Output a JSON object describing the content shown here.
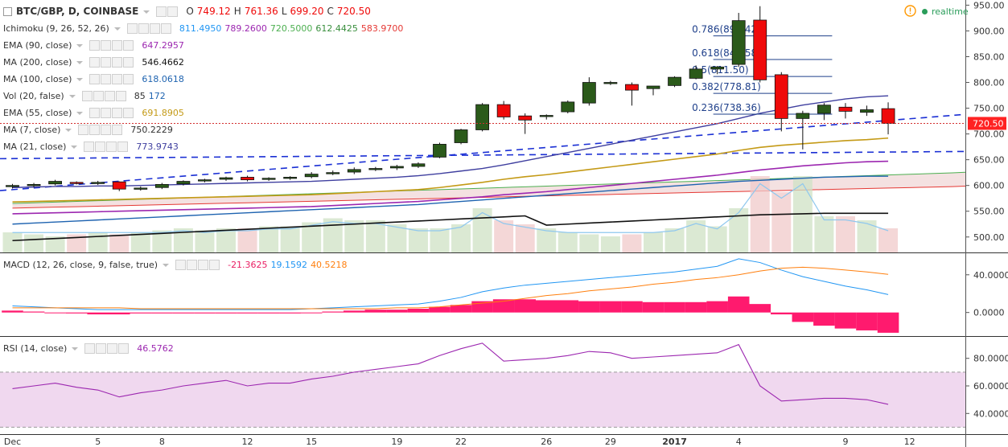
{
  "header": {
    "symbol": "BTC/GBP, D, COINBASE",
    "ohlc": [
      {
        "key": "O",
        "value": "749.12"
      },
      {
        "key": "H",
        "value": "761.36"
      },
      {
        "key": "L",
        "value": "699.20"
      },
      {
        "key": "C",
        "value": "720.50"
      }
    ],
    "realtime_label": "realtime",
    "warning_icon": "warning-circle-icon"
  },
  "indicators": [
    {
      "name": "Ichimoku (9, 26, 52, 26)",
      "values": [
        {
          "v": "811.4950",
          "c": "#2196f3"
        },
        {
          "v": "789.2600",
          "c": "#9c27b0"
        },
        {
          "v": "720.5000",
          "c": "#4caf50"
        },
        {
          "v": "612.4425",
          "c": "#388e3c"
        },
        {
          "v": "583.9700",
          "c": "#e53935"
        }
      ]
    },
    {
      "name": "EMA (90, close)",
      "values": [
        {
          "v": "647.2957",
          "c": "#9c27b0"
        }
      ]
    },
    {
      "name": "MA (200, close)",
      "values": [
        {
          "v": "546.4662",
          "c": "#111111"
        }
      ]
    },
    {
      "name": "MA (100, close)",
      "values": [
        {
          "v": "618.0618",
          "c": "#1e63b0"
        }
      ]
    },
    {
      "name": "Vol (20, false)",
      "values": [
        {
          "v": "85",
          "c": "#333333"
        },
        {
          "v": "172",
          "c": "#1e63b0"
        }
      ]
    },
    {
      "name": "EMA (55, close)",
      "values": [
        {
          "v": "691.8905",
          "c": "#c49a16"
        }
      ]
    },
    {
      "name": "MA (7, close)",
      "values": [
        {
          "v": "750.2229",
          "c": "#333333"
        }
      ]
    },
    {
      "name": "MA (21, close)",
      "values": [
        {
          "v": "773.9743",
          "c": "#3f3f9f"
        }
      ]
    }
  ],
  "macd": {
    "name": "MACD (12, 26, close, 9, false, true)",
    "values": [
      {
        "v": "-21.3625",
        "c": "#e91e63"
      },
      {
        "v": "19.1592",
        "c": "#2196f3"
      },
      {
        "v": "40.5218",
        "c": "#ff7f0e"
      }
    ]
  },
  "rsi": {
    "name": "RSI (14, close)",
    "values": [
      {
        "v": "46.5762",
        "c": "#9c27b0"
      }
    ]
  },
  "price_label": "720.50",
  "chart_data": {
    "type": "candlestick",
    "main_yaxis": {
      "ticks": [
        950,
        900,
        850,
        800,
        750,
        700,
        650,
        600,
        550,
        500
      ],
      "tick_labels": [
        "950.00",
        "900.00",
        "850.00",
        "800.00",
        "750.00",
        "700.00",
        "650.00",
        "600.00",
        "550.00",
        "500.00"
      ],
      "ylim": [
        470,
        960
      ]
    },
    "macd_yaxis": {
      "ticks": [
        40,
        0
      ],
      "tick_labels": [
        "40.0000",
        "0.0000"
      ],
      "ylim": [
        -25,
        62
      ]
    },
    "rsi_yaxis": {
      "ticks": [
        80,
        60,
        40
      ],
      "tick_labels": [
        "80.0000",
        "60.0000",
        "40.0000"
      ],
      "ylim": [
        25,
        95
      ],
      "band": [
        30,
        70
      ]
    },
    "xaxis": {
      "labels": [
        {
          "text": "Dec",
          "i": 0
        },
        {
          "text": "5",
          "i": 4
        },
        {
          "text": "8",
          "i": 7
        },
        {
          "text": "12",
          "i": 11
        },
        {
          "text": "15",
          "i": 14
        },
        {
          "text": "19",
          "i": 18
        },
        {
          "text": "22",
          "i": 21
        },
        {
          "text": "26",
          "i": 25
        },
        {
          "text": "29",
          "i": 28
        },
        {
          "text": "2017",
          "i": 31,
          "bold": true
        },
        {
          "text": "4",
          "i": 34
        },
        {
          "text": "9",
          "i": 39
        },
        {
          "text": "12",
          "i": 42
        }
      ]
    },
    "candles": [
      {
        "o": 598,
        "h": 603,
        "l": 594,
        "c": 600
      },
      {
        "o": 601,
        "h": 605,
        "l": 596,
        "c": 602
      },
      {
        "o": 603,
        "h": 611,
        "l": 600,
        "c": 608
      },
      {
        "o": 606,
        "h": 608,
        "l": 602,
        "c": 604
      },
      {
        "o": 604,
        "h": 609,
        "l": 601,
        "c": 606
      },
      {
        "o": 607,
        "h": 608,
        "l": 589,
        "c": 593
      },
      {
        "o": 593,
        "h": 598,
        "l": 590,
        "c": 595
      },
      {
        "o": 596,
        "h": 605,
        "l": 593,
        "c": 602
      },
      {
        "o": 603,
        "h": 610,
        "l": 600,
        "c": 608
      },
      {
        "o": 609,
        "h": 613,
        "l": 606,
        "c": 611
      },
      {
        "o": 612,
        "h": 617,
        "l": 609,
        "c": 615
      },
      {
        "o": 616,
        "h": 619,
        "l": 608,
        "c": 611
      },
      {
        "o": 612,
        "h": 616,
        "l": 609,
        "c": 614
      },
      {
        "o": 615,
        "h": 618,
        "l": 611,
        "c": 616
      },
      {
        "o": 617,
        "h": 626,
        "l": 614,
        "c": 622
      },
      {
        "o": 623,
        "h": 629,
        "l": 620,
        "c": 625
      },
      {
        "o": 626,
        "h": 635,
        "l": 622,
        "c": 631
      },
      {
        "o": 632,
        "h": 636,
        "l": 628,
        "c": 633
      },
      {
        "o": 634,
        "h": 640,
        "l": 630,
        "c": 637
      },
      {
        "o": 637,
        "h": 645,
        "l": 634,
        "c": 642
      },
      {
        "o": 655,
        "h": 683,
        "l": 653,
        "c": 680
      },
      {
        "o": 683,
        "h": 710,
        "l": 680,
        "c": 708
      },
      {
        "o": 708,
        "h": 760,
        "l": 705,
        "c": 757
      },
      {
        "o": 757,
        "h": 764,
        "l": 728,
        "c": 733
      },
      {
        "o": 735,
        "h": 740,
        "l": 700,
        "c": 727
      },
      {
        "o": 734,
        "h": 738,
        "l": 728,
        "c": 736
      },
      {
        "o": 743,
        "h": 765,
        "l": 740,
        "c": 762
      },
      {
        "o": 760,
        "h": 810,
        "l": 755,
        "c": 800
      },
      {
        "o": 798,
        "h": 803,
        "l": 795,
        "c": 800
      },
      {
        "o": 796,
        "h": 800,
        "l": 755,
        "c": 785
      },
      {
        "o": 788,
        "h": 792,
        "l": 775,
        "c": 793
      },
      {
        "o": 794,
        "h": 812,
        "l": 791,
        "c": 810
      },
      {
        "o": 808,
        "h": 833,
        "l": 806,
        "c": 826
      },
      {
        "o": 826,
        "h": 832,
        "l": 816,
        "c": 830
      },
      {
        "o": 835,
        "h": 935,
        "l": 830,
        "c": 920
      },
      {
        "o": 921,
        "h": 948,
        "l": 800,
        "c": 805
      },
      {
        "o": 815,
        "h": 820,
        "l": 705,
        "c": 730
      },
      {
        "o": 730,
        "h": 745,
        "l": 670,
        "c": 740
      },
      {
        "o": 740,
        "h": 760,
        "l": 727,
        "c": 756
      },
      {
        "o": 752,
        "h": 760,
        "l": 730,
        "c": 744
      },
      {
        "o": 742,
        "h": 755,
        "l": 735,
        "c": 747
      },
      {
        "o": 749.12,
        "h": 761.36,
        "l": 699.2,
        "c": 720.5
      }
    ],
    "volume": [
      10,
      9,
      8,
      9,
      10,
      9,
      10,
      11,
      12,
      11,
      12,
      12,
      13,
      13,
      15,
      17,
      16,
      16,
      14,
      12,
      12,
      14,
      22,
      16,
      14,
      12,
      10,
      9,
      8,
      9,
      10,
      12,
      16,
      13,
      22,
      38,
      30,
      38,
      18,
      18,
      16,
      12
    ],
    "ma7": [
      602,
      603,
      604,
      604,
      605,
      603,
      602,
      603,
      604,
      606,
      608,
      609,
      610,
      611,
      613,
      615,
      618,
      620,
      624,
      628,
      638,
      650,
      665,
      675,
      690,
      705,
      720,
      735,
      752,
      762,
      770,
      778,
      786,
      793,
      810,
      825,
      820,
      818,
      808,
      790,
      775,
      750
    ],
    "ma21": [
      596,
      597,
      598,
      598,
      599,
      599,
      600,
      601,
      602,
      603,
      604,
      605,
      606,
      607,
      608,
      610,
      612,
      614,
      616,
      619,
      623,
      628,
      633,
      640,
      648,
      656,
      664,
      672,
      680,
      688,
      696,
      704,
      712,
      720,
      730,
      740,
      748,
      756,
      762,
      768,
      772,
      774
    ],
    "ema55": [
      568,
      569,
      570,
      571,
      572,
      573,
      574,
      575,
      576,
      577,
      578,
      579,
      580,
      581,
      582,
      584,
      586,
      588,
      590,
      592,
      596,
      601,
      606,
      612,
      617,
      621,
      626,
      631,
      636,
      641,
      646,
      651,
      656,
      661,
      668,
      674,
      678,
      681,
      684,
      687,
      689,
      692
    ],
    "ema90": [
      545,
      546,
      547,
      548,
      549,
      550,
      551,
      552,
      553,
      554,
      555,
      556,
      557,
      558,
      559,
      561,
      563,
      565,
      567,
      569,
      572,
      575,
      578,
      582,
      585,
      588,
      592,
      596,
      600,
      604,
      608,
      612,
      616,
      620,
      625,
      630,
      634,
      638,
      641,
      644,
      646,
      647
    ],
    "ma100": [
      525,
      527,
      529,
      531,
      533,
      535,
      537,
      539,
      541,
      543,
      545,
      547,
      549,
      551,
      553,
      555,
      557,
      559,
      561,
      563,
      566,
      569,
      572,
      575,
      578,
      581,
      584,
      587,
      590,
      593,
      596,
      599,
      602,
      605,
      608,
      610,
      612,
      614,
      616,
      617,
      618,
      618
    ],
    "ma200": [
      493,
      495,
      497,
      499,
      501,
      503,
      505,
      507,
      509,
      511,
      513,
      515,
      517,
      519,
      521,
      523,
      525,
      527,
      529,
      531,
      533,
      535,
      537,
      539,
      541,
      523,
      525,
      527,
      529,
      531,
      533,
      535,
      537,
      539,
      541,
      543,
      544,
      545,
      546,
      546,
      546,
      546
    ],
    "macd_line": [
      7,
      6,
      5,
      4,
      3,
      3,
      3,
      3,
      3,
      3,
      3,
      3,
      3,
      3,
      4,
      5,
      6,
      7,
      8,
      9,
      12,
      16,
      22,
      26,
      29,
      31,
      33,
      35,
      37,
      39,
      41,
      43,
      46,
      49,
      57,
      53,
      45,
      38,
      33,
      28,
      24,
      19
    ],
    "macd_signal": [
      5,
      5,
      5,
      5,
      5,
      5,
      4,
      4,
      4,
      4,
      4,
      4,
      4,
      4,
      4,
      4,
      4,
      4,
      5,
      5,
      6,
      8,
      10,
      12,
      15,
      18,
      20,
      23,
      25,
      27,
      30,
      32,
      35,
      37,
      40,
      44,
      47,
      48,
      47,
      45,
      43,
      40.5
    ],
    "rsi": [
      58,
      60,
      62,
      59,
      57,
      52,
      55,
      57,
      60,
      62,
      64,
      60,
      62,
      62,
      65,
      67,
      70,
      72,
      74,
      76,
      82,
      87,
      91,
      78,
      79,
      80,
      82,
      85,
      84,
      80,
      81,
      82,
      83,
      84,
      90,
      60,
      49,
      50,
      51,
      51,
      50,
      46.6
    ],
    "fib": [
      {
        "label": "0.786(890.42)",
        "v": 890.42
      },
      {
        "label": "0.618(844.58)",
        "v": 844.58
      },
      {
        "label": "0.5(811.50)",
        "v": 811.5
      },
      {
        "label": "0.382(778.81)",
        "v": 778.81
      },
      {
        "label": "0.236(738.36)",
        "v": 738.36
      }
    ],
    "colors": {
      "up": "#2b5a1a",
      "down": "#ef0a0a",
      "ma7": "#333333",
      "ma21": "#3f3f9f",
      "ema55": "#c49a16",
      "ema90": "#9c27b0",
      "ma100": "#1e63b0",
      "ma200": "#111111",
      "macd": "#2196f3",
      "signal": "#ff7f0e",
      "hist": "#ff1a6e",
      "rsi": "#9c27b0",
      "price": "#ff0000"
    }
  }
}
